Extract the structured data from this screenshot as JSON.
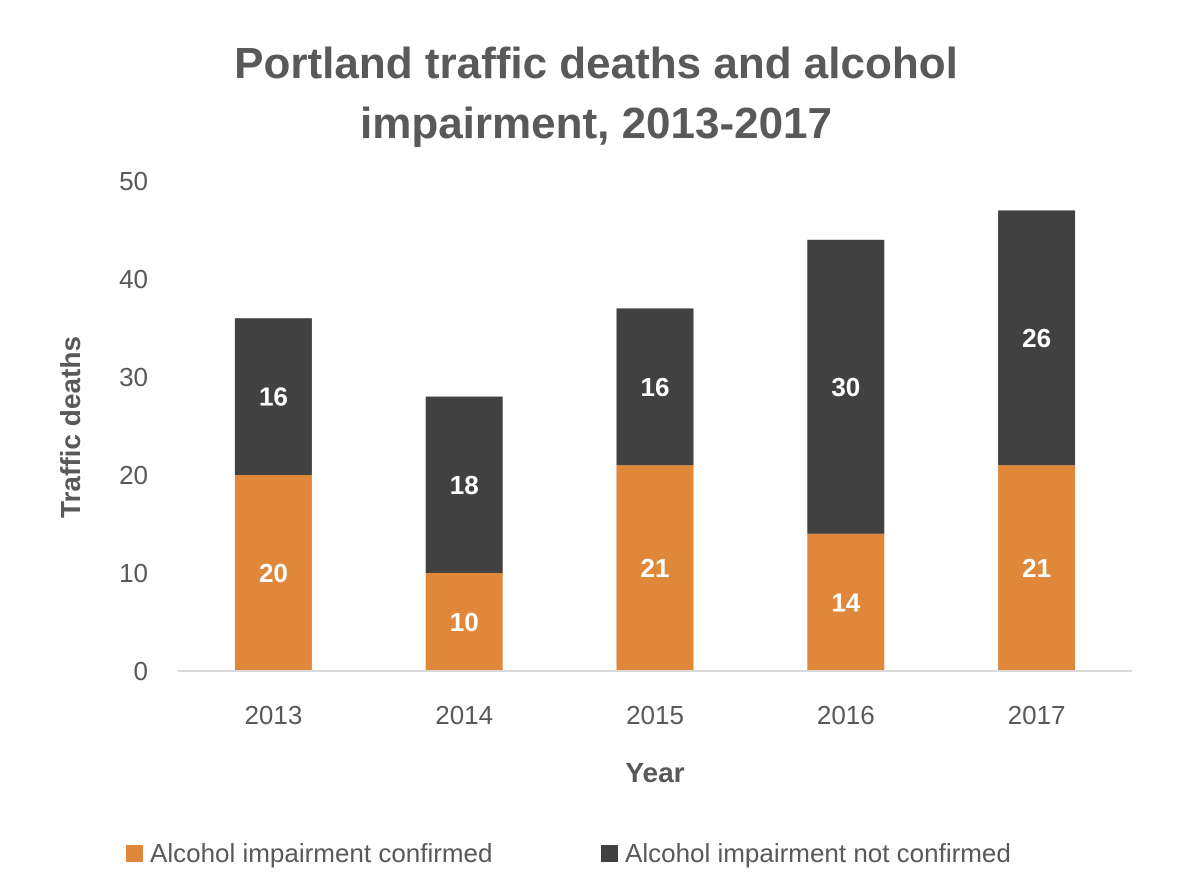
{
  "chart_data": {
    "type": "bar",
    "stacked": true,
    "title": [
      "Portland traffic deaths and alcohol",
      "impairment, 2013-2017"
    ],
    "xlabel": "Year",
    "ylabel": "Traffic deaths",
    "categories": [
      "2013",
      "2014",
      "2015",
      "2016",
      "2017"
    ],
    "ylim": [
      0,
      50
    ],
    "yticks": [
      "0",
      "10",
      "20",
      "30",
      "40",
      "50"
    ],
    "grid": false,
    "legend_position": "bottom",
    "series": [
      {
        "name": "Alcohol impairment confirmed",
        "values": [
          20,
          10,
          21,
          14,
          21
        ],
        "color": "#e0873a"
      },
      {
        "name": "Alcohol impairment not confirmed",
        "values": [
          16,
          18,
          16,
          30,
          26
        ],
        "color": "#414141"
      }
    ]
  }
}
